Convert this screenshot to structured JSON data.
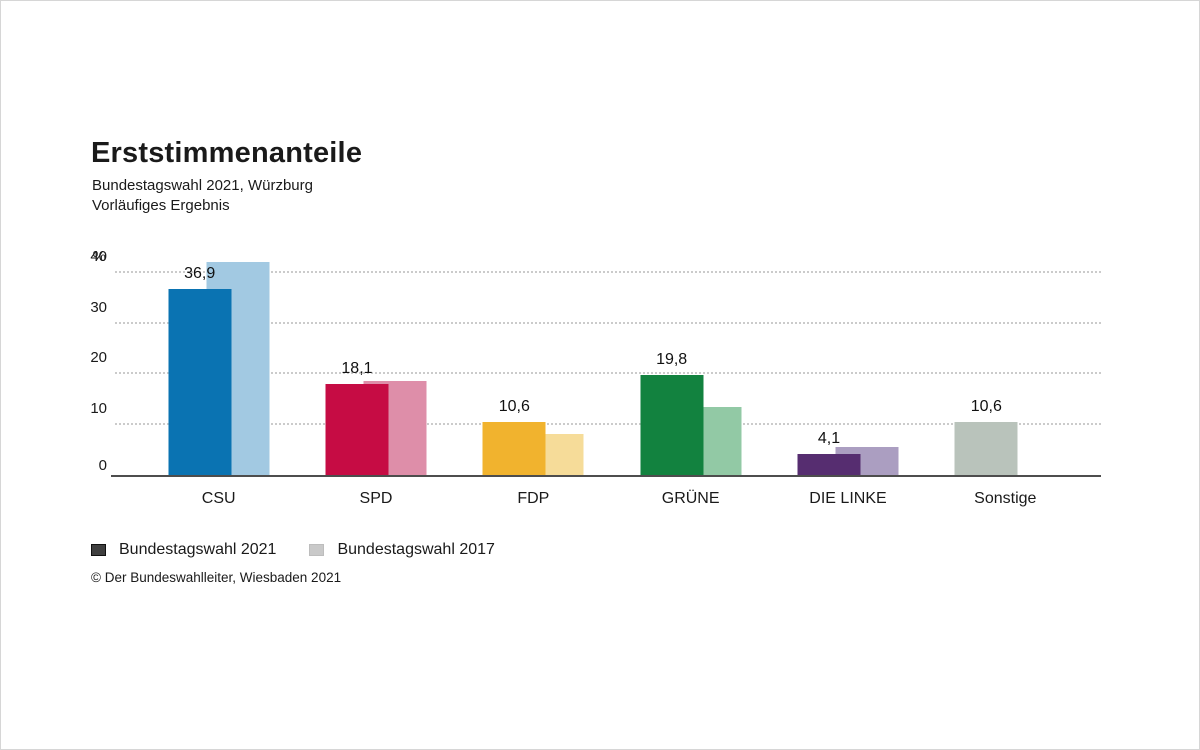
{
  "title": "Erststimmenanteile",
  "subtitle_line1": "Bundestagswahl 2021, Würzburg",
  "subtitle_line2": "Vorläufiges Ergebnis",
  "unit_label": "%",
  "footer": "© Der Bundeswahlleiter, Wiesbaden 2021",
  "axis_color": "#4d4d4d",
  "gridline_color": "#cbcbcb",
  "legend": [
    {
      "label": "Bundestagswahl 2021",
      "color": "#3f3f3f",
      "border": "#111111"
    },
    {
      "label": "Bundestagswahl 2017",
      "color": "#c9c9c9",
      "border": "#bdbdbd"
    }
  ],
  "chart_data": {
    "type": "bar",
    "title": "Erststimmenanteile",
    "subtitle": "Bundestagswahl 2021, Würzburg — Vorläufiges Ergebnis",
    "categories": [
      "CSU",
      "SPD",
      "FDP",
      "GRÜNE",
      "DIE LINKE",
      "Sonstige"
    ],
    "series": [
      {
        "name": "Bundestagswahl 2021",
        "values": [
          36.9,
          18.1,
          10.6,
          19.8,
          4.1,
          10.6
        ],
        "value_labels": [
          "36,9",
          "18,1",
          "10,6",
          "19,8",
          "4,1",
          "10,6"
        ],
        "colors": [
          "#0a73b2",
          "#c60c44",
          "#f1b32e",
          "#12823f",
          "#562d70",
          "#b9c3bb"
        ]
      },
      {
        "name": "Bundestagswahl 2017",
        "values": [
          42.3,
          18.7,
          8.1,
          13.5,
          5.5,
          null
        ],
        "value_labels": [
          null,
          null,
          null,
          null,
          null,
          null
        ],
        "colors": [
          "#a2c9e2",
          "#de8ea9",
          "#f6dc99",
          "#92c9a5",
          "#ab9ec1",
          null
        ]
      }
    ],
    "ylabel": "%",
    "ylim": [
      0,
      44
    ],
    "yticks": [
      0,
      10,
      20,
      30,
      40
    ],
    "grid": "horizontal-dotted",
    "legend_position": "bottom-left"
  }
}
